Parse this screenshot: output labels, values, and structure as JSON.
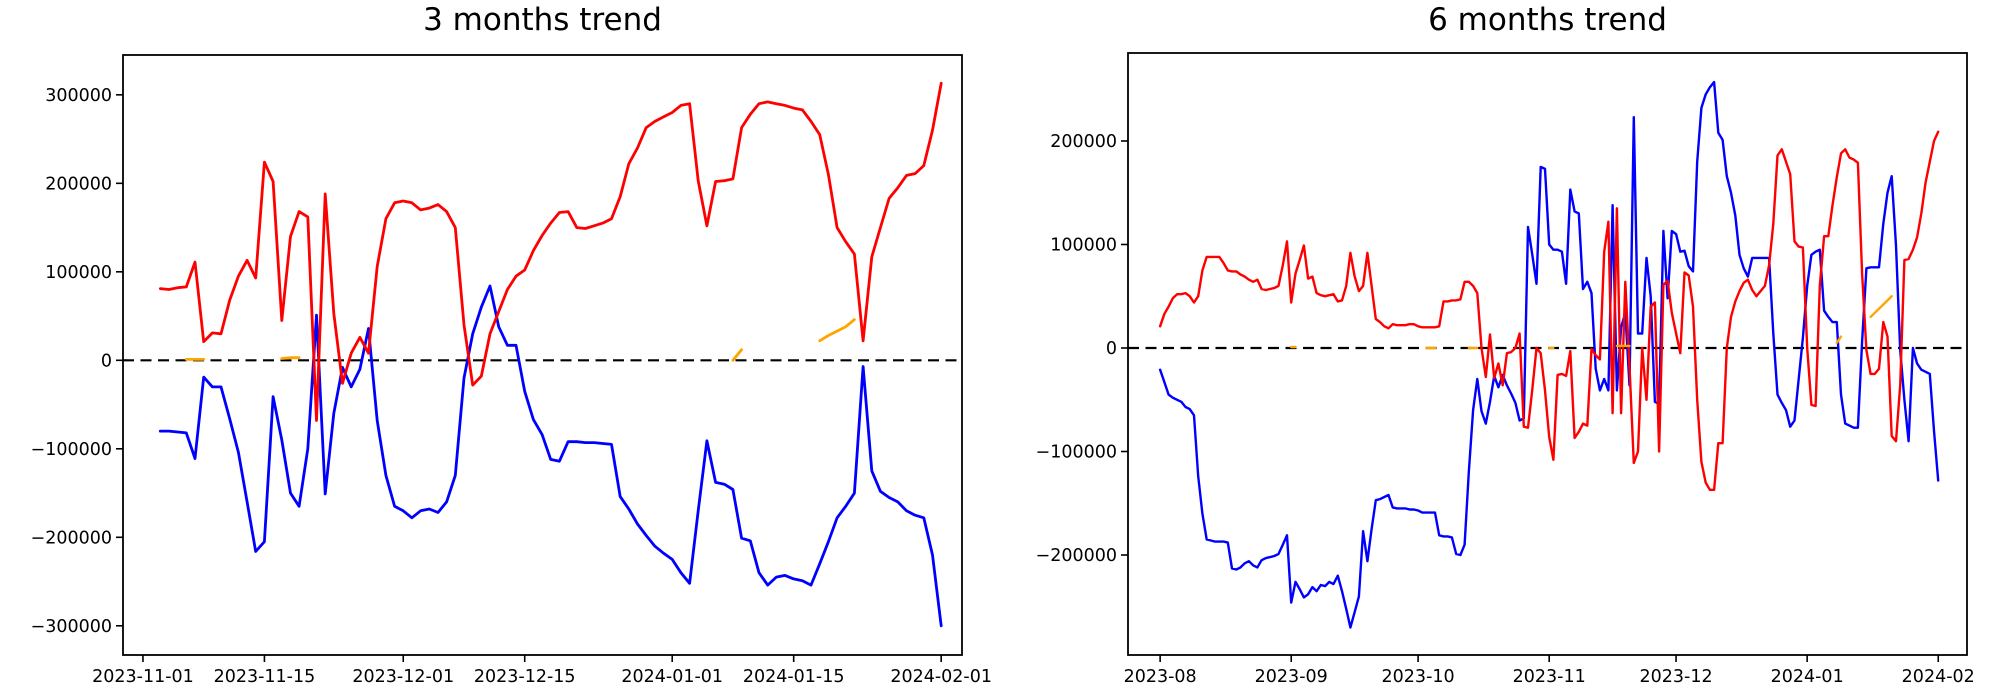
{
  "figure": {
    "background": "#ffffff",
    "zero_line_color": "#000000",
    "axis_color": "#000000"
  },
  "chart_data": [
    {
      "title": "3 months trend",
      "type": "line",
      "x_start_date": "2023-11-01",
      "x_cadence": "daily",
      "x_tick_labels": [
        "2023-11-01",
        "2023-11-15",
        "2023-12-01",
        "2023-12-15",
        "2024-01-01",
        "2024-01-15",
        "2024-02-01"
      ],
      "x_tick_days": [
        0,
        14,
        30,
        44,
        61,
        75,
        92
      ],
      "y_tick_labels": [
        "300000",
        "200000",
        "100000",
        "0",
        "−100000",
        "−200000",
        "−300000"
      ],
      "y_tick_values": [
        300000,
        200000,
        100000,
        0,
        -100000,
        -200000,
        -300000
      ],
      "ylim": [
        -333000,
        345000
      ],
      "xlim_days": [
        -2.3,
        94.4
      ],
      "grid": false,
      "legend": null,
      "zero_line": {
        "style": "dashed",
        "value": 0,
        "color": "#000000"
      },
      "unit": "thousands",
      "series": [
        {
          "name": "red",
          "color": "#ff0000",
          "values_thousands": [
            null,
            null,
            81,
            80,
            82,
            83,
            111,
            21,
            31,
            30,
            68,
            95,
            113,
            93,
            224,
            202,
            45,
            140,
            168,
            162,
            -68,
            188,
            53,
            -26,
            8,
            26,
            8,
            106,
            160,
            178,
            180,
            178,
            170,
            172,
            176,
            168,
            150,
            40,
            -28,
            -18,
            30,
            55,
            80,
            95,
            102,
            124,
            141,
            155,
            167,
            168,
            150,
            149,
            152,
            155,
            160,
            185,
            222,
            240,
            263,
            270,
            275,
            280,
            288,
            290,
            203,
            152,
            202,
            203,
            205,
            263,
            278,
            290,
            292,
            290,
            288,
            285,
            283,
            270,
            255,
            210,
            150,
            134,
            120,
            22,
            117,
            150,
            183,
            195,
            209,
            211,
            220,
            260,
            313
          ]
        },
        {
          "name": "blue",
          "color": "#0000ff",
          "values_thousands": [
            null,
            null,
            -80,
            -80,
            -81,
            -82,
            -111,
            -19,
            -30,
            -30,
            -66,
            -104,
            -160,
            -216,
            -205,
            -41,
            -90,
            -150,
            -165,
            -100,
            51,
            -151,
            -60,
            -8,
            -30,
            -10,
            36,
            -68,
            -130,
            -165,
            -170,
            -178,
            -170,
            -168,
            -172,
            -160,
            -130,
            -20,
            30,
            60,
            84,
            38,
            17,
            17,
            -35,
            -67,
            -84,
            -112,
            -114,
            -92,
            -92,
            -93,
            -93,
            -94,
            -95,
            -154,
            -168,
            -185,
            -198,
            -210,
            -218,
            -225,
            -240,
            -252,
            -170,
            -91,
            -138,
            -140,
            -146,
            -201,
            -204,
            -240,
            -254,
            -245,
            -243,
            -247,
            -249,
            -254,
            -230,
            -205,
            -178,
            -165,
            -150,
            -7,
            -125,
            -148,
            -155,
            -160,
            -170,
            -175,
            -178,
            -220,
            -300
          ]
        },
        {
          "name": "orange",
          "color": "#ffa500",
          "segments": [
            {
              "start_day": 5,
              "values_thousands": [
                1,
                1,
                1
              ]
            },
            {
              "start_day": 16,
              "values_thousands": [
                2,
                3,
                3
              ]
            },
            {
              "start_day": 68,
              "values_thousands": [
                0,
                12
              ]
            },
            {
              "start_day": 78,
              "values_thousands": [
                22,
                28,
                33,
                38,
                46
              ]
            }
          ]
        }
      ]
    },
    {
      "title": "6 months trend",
      "type": "line",
      "x_start_date": "2023-08-01",
      "x_cadence": "daily",
      "x_tick_labels": [
        "2023-08",
        "2023-09",
        "2023-10",
        "2023-11",
        "2023-12",
        "2024-01",
        "2024-02"
      ],
      "x_tick_days": [
        0,
        31,
        61,
        92,
        122,
        153,
        184
      ],
      "y_tick_labels": [
        "200000",
        "100000",
        "0",
        "−100000",
        "−200000"
      ],
      "y_tick_values": [
        200000,
        100000,
        0,
        -100000,
        -200000
      ],
      "ylim": [
        -296600,
        285000
      ],
      "xlim_days": [
        -7.6,
        190.8
      ],
      "grid": false,
      "legend": null,
      "zero_line": {
        "style": "dashed",
        "value": 0,
        "color": "#000000"
      },
      "unit": "thousands",
      "series": [
        {
          "name": "red",
          "color": "#ff0000",
          "values_thousands": [
            21,
            33,
            40,
            48,
            52,
            52,
            53,
            50,
            44,
            50,
            75,
            88,
            88,
            88,
            88,
            82,
            75,
            74,
            74,
            71,
            69,
            66,
            64,
            66,
            57,
            56,
            57,
            58,
            60,
            80,
            103,
            44,
            72,
            85,
            99,
            67,
            69,
            53,
            51,
            50,
            51,
            52,
            45,
            46,
            60,
            92,
            69,
            55,
            60,
            92,
            60,
            28,
            25,
            21,
            19,
            23,
            22,
            22,
            22,
            23,
            23,
            21,
            20,
            20,
            20,
            20,
            21,
            45,
            45,
            46,
            46,
            47,
            64,
            64,
            60,
            53,
            0,
            -28,
            13,
            -29,
            -15,
            -36,
            -5,
            -4,
            0,
            14,
            -76,
            -77,
            -40,
            0,
            -5,
            -41,
            -86,
            -108,
            -26,
            -25,
            -27,
            -3,
            -87,
            -81,
            -73,
            -75,
            -1,
            -7,
            -11,
            93,
            122,
            -63,
            135,
            -63,
            64,
            -18,
            -111,
            -100,
            0,
            -50,
            40,
            44,
            -100,
            61,
            65,
            34,
            14,
            -5,
            73,
            70,
            40,
            -50,
            -110,
            -130,
            -137,
            -137,
            -92,
            -92,
            0,
            30,
            45,
            55,
            63,
            66,
            56,
            50,
            55,
            60,
            80,
            120,
            186,
            192,
            180,
            168,
            103,
            98,
            97,
            0,
            -55,
            -56,
            60,
            108,
            108,
            138,
            165,
            188,
            192,
            184,
            182,
            179,
            72,
            -2,
            -25,
            -25,
            -20,
            25,
            11,
            -85,
            -90,
            -36,
            85,
            86,
            95,
            107,
            130,
            160,
            180,
            200,
            209
          ]
        },
        {
          "name": "blue",
          "color": "#0000ff",
          "values_thousands": [
            -21,
            -33,
            -45,
            -48,
            -50,
            -52,
            -57,
            -59,
            -65,
            -124,
            -160,
            -185,
            -186,
            -187,
            -187,
            -187,
            -188,
            -213,
            -214,
            -212,
            -208,
            -206,
            -210,
            -212,
            -205,
            -203,
            -202,
            -201,
            -199,
            -190,
            -181,
            -246,
            -226,
            -233,
            -241,
            -238,
            -231,
            -235,
            -229,
            -230,
            -226,
            -228,
            -220,
            -235,
            -252,
            -270,
            -255,
            -240,
            -177,
            -206,
            -175,
            -147,
            -146,
            -144,
            -142,
            -154,
            -155,
            -155,
            -155,
            -156,
            -156,
            -157,
            -159,
            -159,
            -159,
            -159,
            -181,
            -182,
            -182,
            -183,
            -199,
            -200,
            -190,
            -120,
            -60,
            -30,
            -61,
            -73,
            -52,
            -27,
            -38,
            -26,
            -36,
            -44,
            -53,
            -70,
            -68,
            117,
            90,
            62,
            175,
            173,
            100,
            95,
            95,
            93,
            62,
            153,
            132,
            130,
            57,
            64,
            53,
            -20,
            -41,
            -30,
            -41,
            138,
            -41,
            20,
            34,
            -36,
            223,
            14,
            14,
            87,
            50,
            -52,
            -54,
            113,
            48,
            113,
            110,
            93,
            94,
            79,
            74,
            180,
            232,
            245,
            252,
            257,
            208,
            201,
            166,
            150,
            128,
            90,
            77,
            69,
            87,
            87,
            87,
            87,
            87,
            14,
            -45,
            -53,
            -60,
            -76,
            -70,
            -30,
            10,
            60,
            90,
            93,
            95,
            36,
            30,
            25,
            25,
            -45,
            -73,
            -75,
            -77,
            -77,
            6,
            77,
            78,
            78,
            78,
            120,
            150,
            166,
            99,
            -2,
            -50,
            -90,
            0,
            -15,
            -21,
            -23,
            -25,
            -80,
            -128
          ]
        },
        {
          "name": "orange",
          "color": "#ffa500",
          "segments": [
            {
              "start_day": 31,
              "values_thousands": [
                1,
                1
              ]
            },
            {
              "start_day": 63,
              "values_thousands": [
                0,
                0,
                0
              ]
            },
            {
              "start_day": 73,
              "values_thousands": [
                0,
                0,
                0
              ]
            },
            {
              "start_day": 92,
              "values_thousands": [
                0,
                0
              ]
            },
            {
              "start_day": 108,
              "values_thousands": [
                2,
                2,
                2,
                2
              ]
            },
            {
              "start_day": 160,
              "values_thousands": [
                5,
                11
              ]
            },
            {
              "start_day": 168,
              "values_thousands": [
                30,
                34,
                38,
                42,
                46,
                50
              ]
            }
          ]
        }
      ]
    }
  ]
}
